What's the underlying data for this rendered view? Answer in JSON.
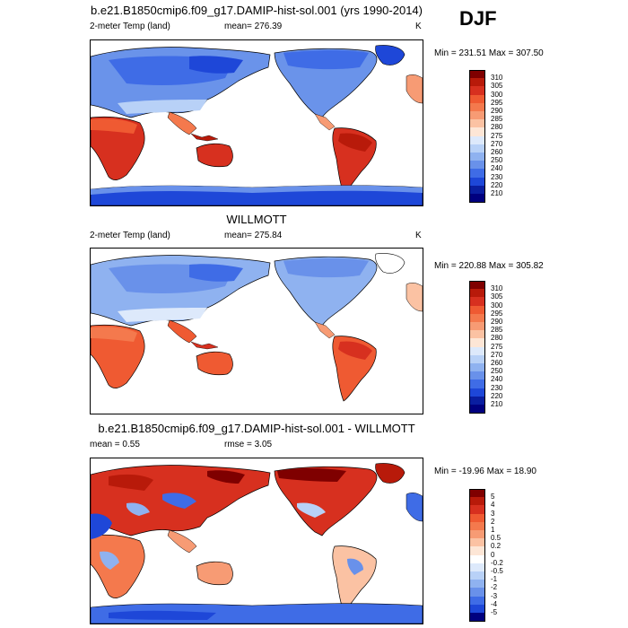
{
  "season": "DJF",
  "chart_data": [
    {
      "type": "heatmap",
      "panel": "model",
      "title": "b.e21.B1850cmip6.f09_g17.DAMIP-hist-sol.001 (yrs 1990-2014)",
      "left_label": "2-meter Temp (land)",
      "center_label": "mean= 276.39",
      "units": "K",
      "minmax": "Min = 231.51 Max = 307.50",
      "colorbar": {
        "levels": [
          "310",
          "305",
          "300",
          "295",
          "290",
          "285",
          "280",
          "275",
          "270",
          "260",
          "250",
          "240",
          "230",
          "220",
          "210"
        ],
        "colors": [
          "#7f0000",
          "#b81a0a",
          "#d7301f",
          "#ef5a32",
          "#f4794d",
          "#f79b74",
          "#fbc2a3",
          "#fde6d6",
          "#dde9fb",
          "#b8d1f7",
          "#8fb2f0",
          "#6991ea",
          "#3f6ce6",
          "#1e47d8",
          "#0a1ea0",
          "#00007f"
        ]
      }
    },
    {
      "type": "heatmap",
      "panel": "obs",
      "title": "WILLMOTT",
      "left_label": "2-meter Temp (land)",
      "center_label": "mean= 275.84",
      "units": "K",
      "minmax": "Min = 220.88 Max = 305.82",
      "colorbar": {
        "levels": [
          "310",
          "305",
          "300",
          "295",
          "290",
          "285",
          "280",
          "275",
          "270",
          "260",
          "250",
          "240",
          "230",
          "220",
          "210"
        ],
        "colors": [
          "#7f0000",
          "#b81a0a",
          "#d7301f",
          "#ef5a32",
          "#f4794d",
          "#f79b74",
          "#fbc2a3",
          "#fde6d6",
          "#dde9fb",
          "#b8d1f7",
          "#8fb2f0",
          "#6991ea",
          "#3f6ce6",
          "#1e47d8",
          "#0a1ea0",
          "#00007f"
        ]
      }
    },
    {
      "type": "heatmap",
      "panel": "difference",
      "title": "b.e21.B1850cmip6.f09_g17.DAMIP-hist-sol.001 - WILLMOTT",
      "left_label": "mean =   0.55",
      "center_label": "rmse =   3.05",
      "units": "",
      "minmax": "Min = -19.96 Max =  18.90",
      "colorbar": {
        "levels": [
          "5",
          "4",
          "3",
          "2",
          "1",
          "0.5",
          "0.2",
          "0",
          "-0.2",
          "-0.5",
          "-1",
          "-2",
          "-3",
          "-4",
          "-5"
        ],
        "colors": [
          "#7f0000",
          "#b81a0a",
          "#d7301f",
          "#ef5a32",
          "#f4794d",
          "#f79b74",
          "#fbc2a3",
          "#fde6d6",
          "#ffffff",
          "#dde9fb",
          "#b8d1f7",
          "#8fb2f0",
          "#6991ea",
          "#3f6ce6",
          "#1e47d8",
          "#00007f"
        ]
      }
    }
  ]
}
